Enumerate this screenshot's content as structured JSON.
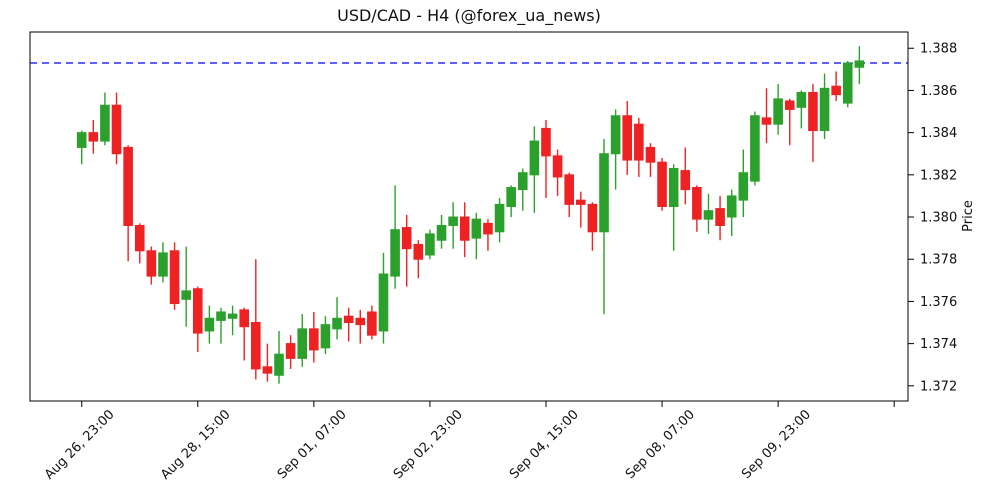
{
  "title": "USD/CAD - H4 (@forex_ua_news)",
  "colors": {
    "up": "#2ca02c",
    "down": "#ee2222",
    "hline": "#0000ff",
    "axis": "#000000",
    "text": "#111111",
    "background": "#ffffff"
  },
  "chart_data": {
    "type": "candlestick",
    "symbol": "USD/CAD",
    "timeframe": "H4",
    "source_handle": "@forex_ua_news",
    "title": "USD/CAD - H4 (@forex_ua_news)",
    "xlabel": "",
    "ylabel": "Price",
    "grid": false,
    "ylim": [
      1.37128,
      1.38877
    ],
    "yticks": [
      1.372,
      1.374,
      1.376,
      1.378,
      1.38,
      1.382,
      1.384,
      1.386,
      1.388
    ],
    "ytick_decimals": 3,
    "xticks": [
      {
        "index": 0,
        "label": "Aug 26, 23:00"
      },
      {
        "index": 10,
        "label": "Aug 28, 15:00"
      },
      {
        "index": 20,
        "label": "Sep 01, 07:00"
      },
      {
        "index": 30,
        "label": "Sep 02, 23:00"
      },
      {
        "index": 40,
        "label": "Sep 04, 15:00"
      },
      {
        "index": 50,
        "label": "Sep 08, 07:00"
      },
      {
        "index": 60,
        "label": "Sep 09, 23:00"
      },
      {
        "index": 70,
        "label": ""
      }
    ],
    "hline": {
      "value": 1.3873,
      "style": "dashed",
      "color": "#0000ff"
    },
    "candles_format": [
      "open",
      "high",
      "low",
      "close"
    ],
    "candles": [
      [
        1.3833,
        1.3841,
        1.3825,
        1.384
      ],
      [
        1.384,
        1.3846,
        1.383,
        1.3836
      ],
      [
        1.3836,
        1.3859,
        1.3834,
        1.3853
      ],
      [
        1.3853,
        1.3859,
        1.3825,
        1.383
      ],
      [
        1.3833,
        1.3834,
        1.3779,
        1.3796
      ],
      [
        1.3796,
        1.3797,
        1.3778,
        1.3784
      ],
      [
        1.3784,
        1.3786,
        1.3768,
        1.3772
      ],
      [
        1.3772,
        1.3788,
        1.3769,
        1.3783
      ],
      [
        1.3784,
        1.3788,
        1.3756,
        1.3759
      ],
      [
        1.3761,
        1.3786,
        1.3748,
        1.3765
      ],
      [
        1.3766,
        1.3767,
        1.3736,
        1.3745
      ],
      [
        1.3746,
        1.3758,
        1.374,
        1.3752
      ],
      [
        1.3751,
        1.3757,
        1.374,
        1.3755
      ],
      [
        1.3752,
        1.3758,
        1.3744,
        1.3754
      ],
      [
        1.3756,
        1.3757,
        1.3732,
        1.3748
      ],
      [
        1.375,
        1.378,
        1.3723,
        1.3728
      ],
      [
        1.3729,
        1.374,
        1.3722,
        1.3726
      ],
      [
        1.3725,
        1.3746,
        1.3721,
        1.3735
      ],
      [
        1.374,
        1.3744,
        1.3728,
        1.3733
      ],
      [
        1.3733,
        1.3754,
        1.3729,
        1.3747
      ],
      [
        1.3747,
        1.3755,
        1.3731,
        1.3737
      ],
      [
        1.3738,
        1.3753,
        1.3735,
        1.3749
      ],
      [
        1.3747,
        1.3762,
        1.3742,
        1.3752
      ],
      [
        1.3753,
        1.3757,
        1.3741,
        1.375
      ],
      [
        1.3752,
        1.3756,
        1.374,
        1.3749
      ],
      [
        1.3755,
        1.3758,
        1.3742,
        1.3744
      ],
      [
        1.3746,
        1.3783,
        1.374,
        1.3773
      ],
      [
        1.3772,
        1.3815,
        1.3766,
        1.3794
      ],
      [
        1.3795,
        1.3801,
        1.3767,
        1.3785
      ],
      [
        1.3787,
        1.3789,
        1.3771,
        1.378
      ],
      [
        1.3782,
        1.3794,
        1.378,
        1.3792
      ],
      [
        1.3789,
        1.3801,
        1.3785,
        1.3796
      ],
      [
        1.3796,
        1.3807,
        1.3785,
        1.38
      ],
      [
        1.38,
        1.3807,
        1.3781,
        1.3789
      ],
      [
        1.379,
        1.3802,
        1.378,
        1.3799
      ],
      [
        1.3797,
        1.3799,
        1.3784,
        1.3792
      ],
      [
        1.3793,
        1.3809,
        1.3788,
        1.3806
      ],
      [
        1.3805,
        1.3815,
        1.38,
        1.3814
      ],
      [
        1.3813,
        1.3823,
        1.3803,
        1.3821
      ],
      [
        1.382,
        1.3843,
        1.3802,
        1.3836
      ],
      [
        1.3842,
        1.3846,
        1.3809,
        1.3829
      ],
      [
        1.3829,
        1.3832,
        1.381,
        1.3819
      ],
      [
        1.382,
        1.3821,
        1.38,
        1.3806
      ],
      [
        1.3808,
        1.3812,
        1.3795,
        1.3806
      ],
      [
        1.3806,
        1.3807,
        1.3784,
        1.3793
      ],
      [
        1.3793,
        1.3837,
        1.3754,
        1.383
      ],
      [
        1.383,
        1.3851,
        1.3813,
        1.3848
      ],
      [
        1.3848,
        1.3855,
        1.382,
        1.3827
      ],
      [
        1.3844,
        1.3847,
        1.3819,
        1.3827
      ],
      [
        1.3833,
        1.3835,
        1.3819,
        1.3826
      ],
      [
        1.3826,
        1.3828,
        1.3803,
        1.3805
      ],
      [
        1.3805,
        1.3825,
        1.3784,
        1.3823
      ],
      [
        1.3822,
        1.3833,
        1.3806,
        1.3813
      ],
      [
        1.3814,
        1.3815,
        1.3793,
        1.3799
      ],
      [
        1.3799,
        1.3811,
        1.3792,
        1.3803
      ],
      [
        1.3804,
        1.381,
        1.3789,
        1.3796
      ],
      [
        1.38,
        1.3813,
        1.3791,
        1.381
      ],
      [
        1.3808,
        1.3832,
        1.38,
        1.3821
      ],
      [
        1.3817,
        1.385,
        1.3815,
        1.3848
      ],
      [
        1.3847,
        1.3861,
        1.3835,
        1.3844
      ],
      [
        1.3844,
        1.3863,
        1.3839,
        1.3856
      ],
      [
        1.3855,
        1.3856,
        1.3834,
        1.3851
      ],
      [
        1.3852,
        1.386,
        1.3842,
        1.3859
      ],
      [
        1.3859,
        1.3863,
        1.3826,
        1.3841
      ],
      [
        1.3841,
        1.3868,
        1.3837,
        1.3861
      ],
      [
        1.3862,
        1.3869,
        1.3855,
        1.3858
      ],
      [
        1.3854,
        1.3874,
        1.3852,
        1.3873
      ],
      [
        1.3871,
        1.3881,
        1.3863,
        1.3874
      ]
    ]
  }
}
